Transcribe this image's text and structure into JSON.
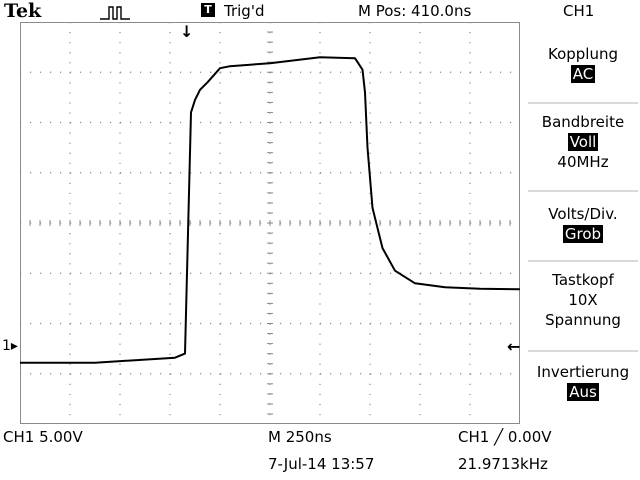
{
  "header": {
    "brand": "Tek",
    "trigger_status": "Trig'd",
    "trigger_icon_letter": "T",
    "horizontal_position": "M Pos: 410.0ns",
    "channel": "CH1"
  },
  "menu": {
    "coupling": {
      "label": "Kopplung",
      "value": "AC"
    },
    "bandwidth": {
      "label": "Bandbreite",
      "value": "Voll",
      "sub": "40MHz"
    },
    "volts_div": {
      "label": "Volts/Div.",
      "value": "Grob"
    },
    "probe": {
      "label": "Tastkopf",
      "value": "10X",
      "sub": "Spannung"
    },
    "invert": {
      "label": "Invertierung",
      "value": "Aus"
    }
  },
  "footer": {
    "ch1_scale": "CH1  5.00V",
    "timebase": "M 250ns",
    "date_time": "7-Jul-14 13:57",
    "trigger_readout": "CH1 ╱ 0.00V",
    "frequency": "21.9713kHz"
  },
  "markers": {
    "ch1_ground": "1",
    "trigger_position": "↓",
    "trigger_level": "←"
  },
  "waveform": {
    "units": "divisions (10 x 8 grid, y=0 bottom)",
    "points": [
      [
        0,
        1.22
      ],
      [
        1.5,
        1.22
      ],
      [
        3.1,
        1.32
      ],
      [
        3.3,
        1.4
      ],
      [
        3.42,
        6.2
      ],
      [
        3.5,
        6.45
      ],
      [
        3.6,
        6.65
      ],
      [
        3.75,
        6.8
      ],
      [
        4.0,
        7.08
      ],
      [
        4.2,
        7.12
      ],
      [
        5.0,
        7.18
      ],
      [
        6.0,
        7.3
      ],
      [
        6.7,
        7.28
      ],
      [
        6.85,
        7.05
      ],
      [
        6.9,
        6.6
      ],
      [
        6.95,
        5.5
      ],
      [
        7.05,
        4.3
      ],
      [
        7.25,
        3.5
      ],
      [
        7.5,
        3.05
      ],
      [
        7.9,
        2.8
      ],
      [
        8.5,
        2.72
      ],
      [
        9.2,
        2.69
      ],
      [
        10,
        2.68
      ]
    ]
  },
  "colors": {
    "background": "#ffffff",
    "graticule": "#8a8a8a",
    "trace": "#000000",
    "separator": "#d9d9d9"
  }
}
